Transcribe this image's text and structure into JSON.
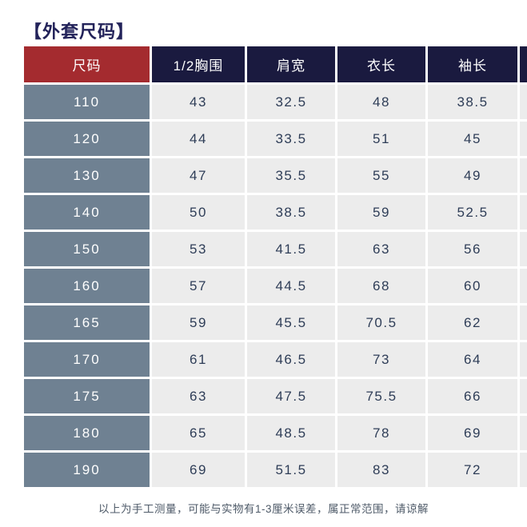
{
  "page": {
    "title": "【外套尺码】",
    "footer_note": "以上为手工测量，可能与实物有1-3厘米误差，属正常范围，请谅解"
  },
  "colors": {
    "header_navy": "#1a1a3f",
    "header_red": "#a42b2f",
    "size_column_slate": "#6f8192",
    "data_cell_gray": "#ececec",
    "data_text_navy": "#2e3d57",
    "title_navy": "#23235a",
    "footer_gray": "#4e5a68"
  },
  "chart_data": {
    "type": "table",
    "title": "【外套尺码】",
    "columns": [
      "尺码",
      "1/2胸围",
      "肩宽",
      "衣长",
      "袖长"
    ],
    "rows": [
      [
        "110",
        "43",
        "32.5",
        "48",
        "38.5"
      ],
      [
        "120",
        "44",
        "33.5",
        "51",
        "45"
      ],
      [
        "130",
        "47",
        "35.5",
        "55",
        "49"
      ],
      [
        "140",
        "50",
        "38.5",
        "59",
        "52.5"
      ],
      [
        "150",
        "53",
        "41.5",
        "63",
        "56"
      ],
      [
        "160",
        "57",
        "44.5",
        "68",
        "60"
      ],
      [
        "165",
        "59",
        "45.5",
        "70.5",
        "62"
      ],
      [
        "170",
        "61",
        "46.5",
        "73",
        "64"
      ],
      [
        "175",
        "63",
        "47.5",
        "75.5",
        "66"
      ],
      [
        "180",
        "65",
        "48.5",
        "78",
        "69"
      ],
      [
        "190",
        "69",
        "51.5",
        "83",
        "72"
      ]
    ],
    "note": "以上为手工测量，可能与实物有1-3厘米误差，属正常范围，请谅解",
    "layout_hint": "rightmost sixth column cropped at image edge"
  }
}
